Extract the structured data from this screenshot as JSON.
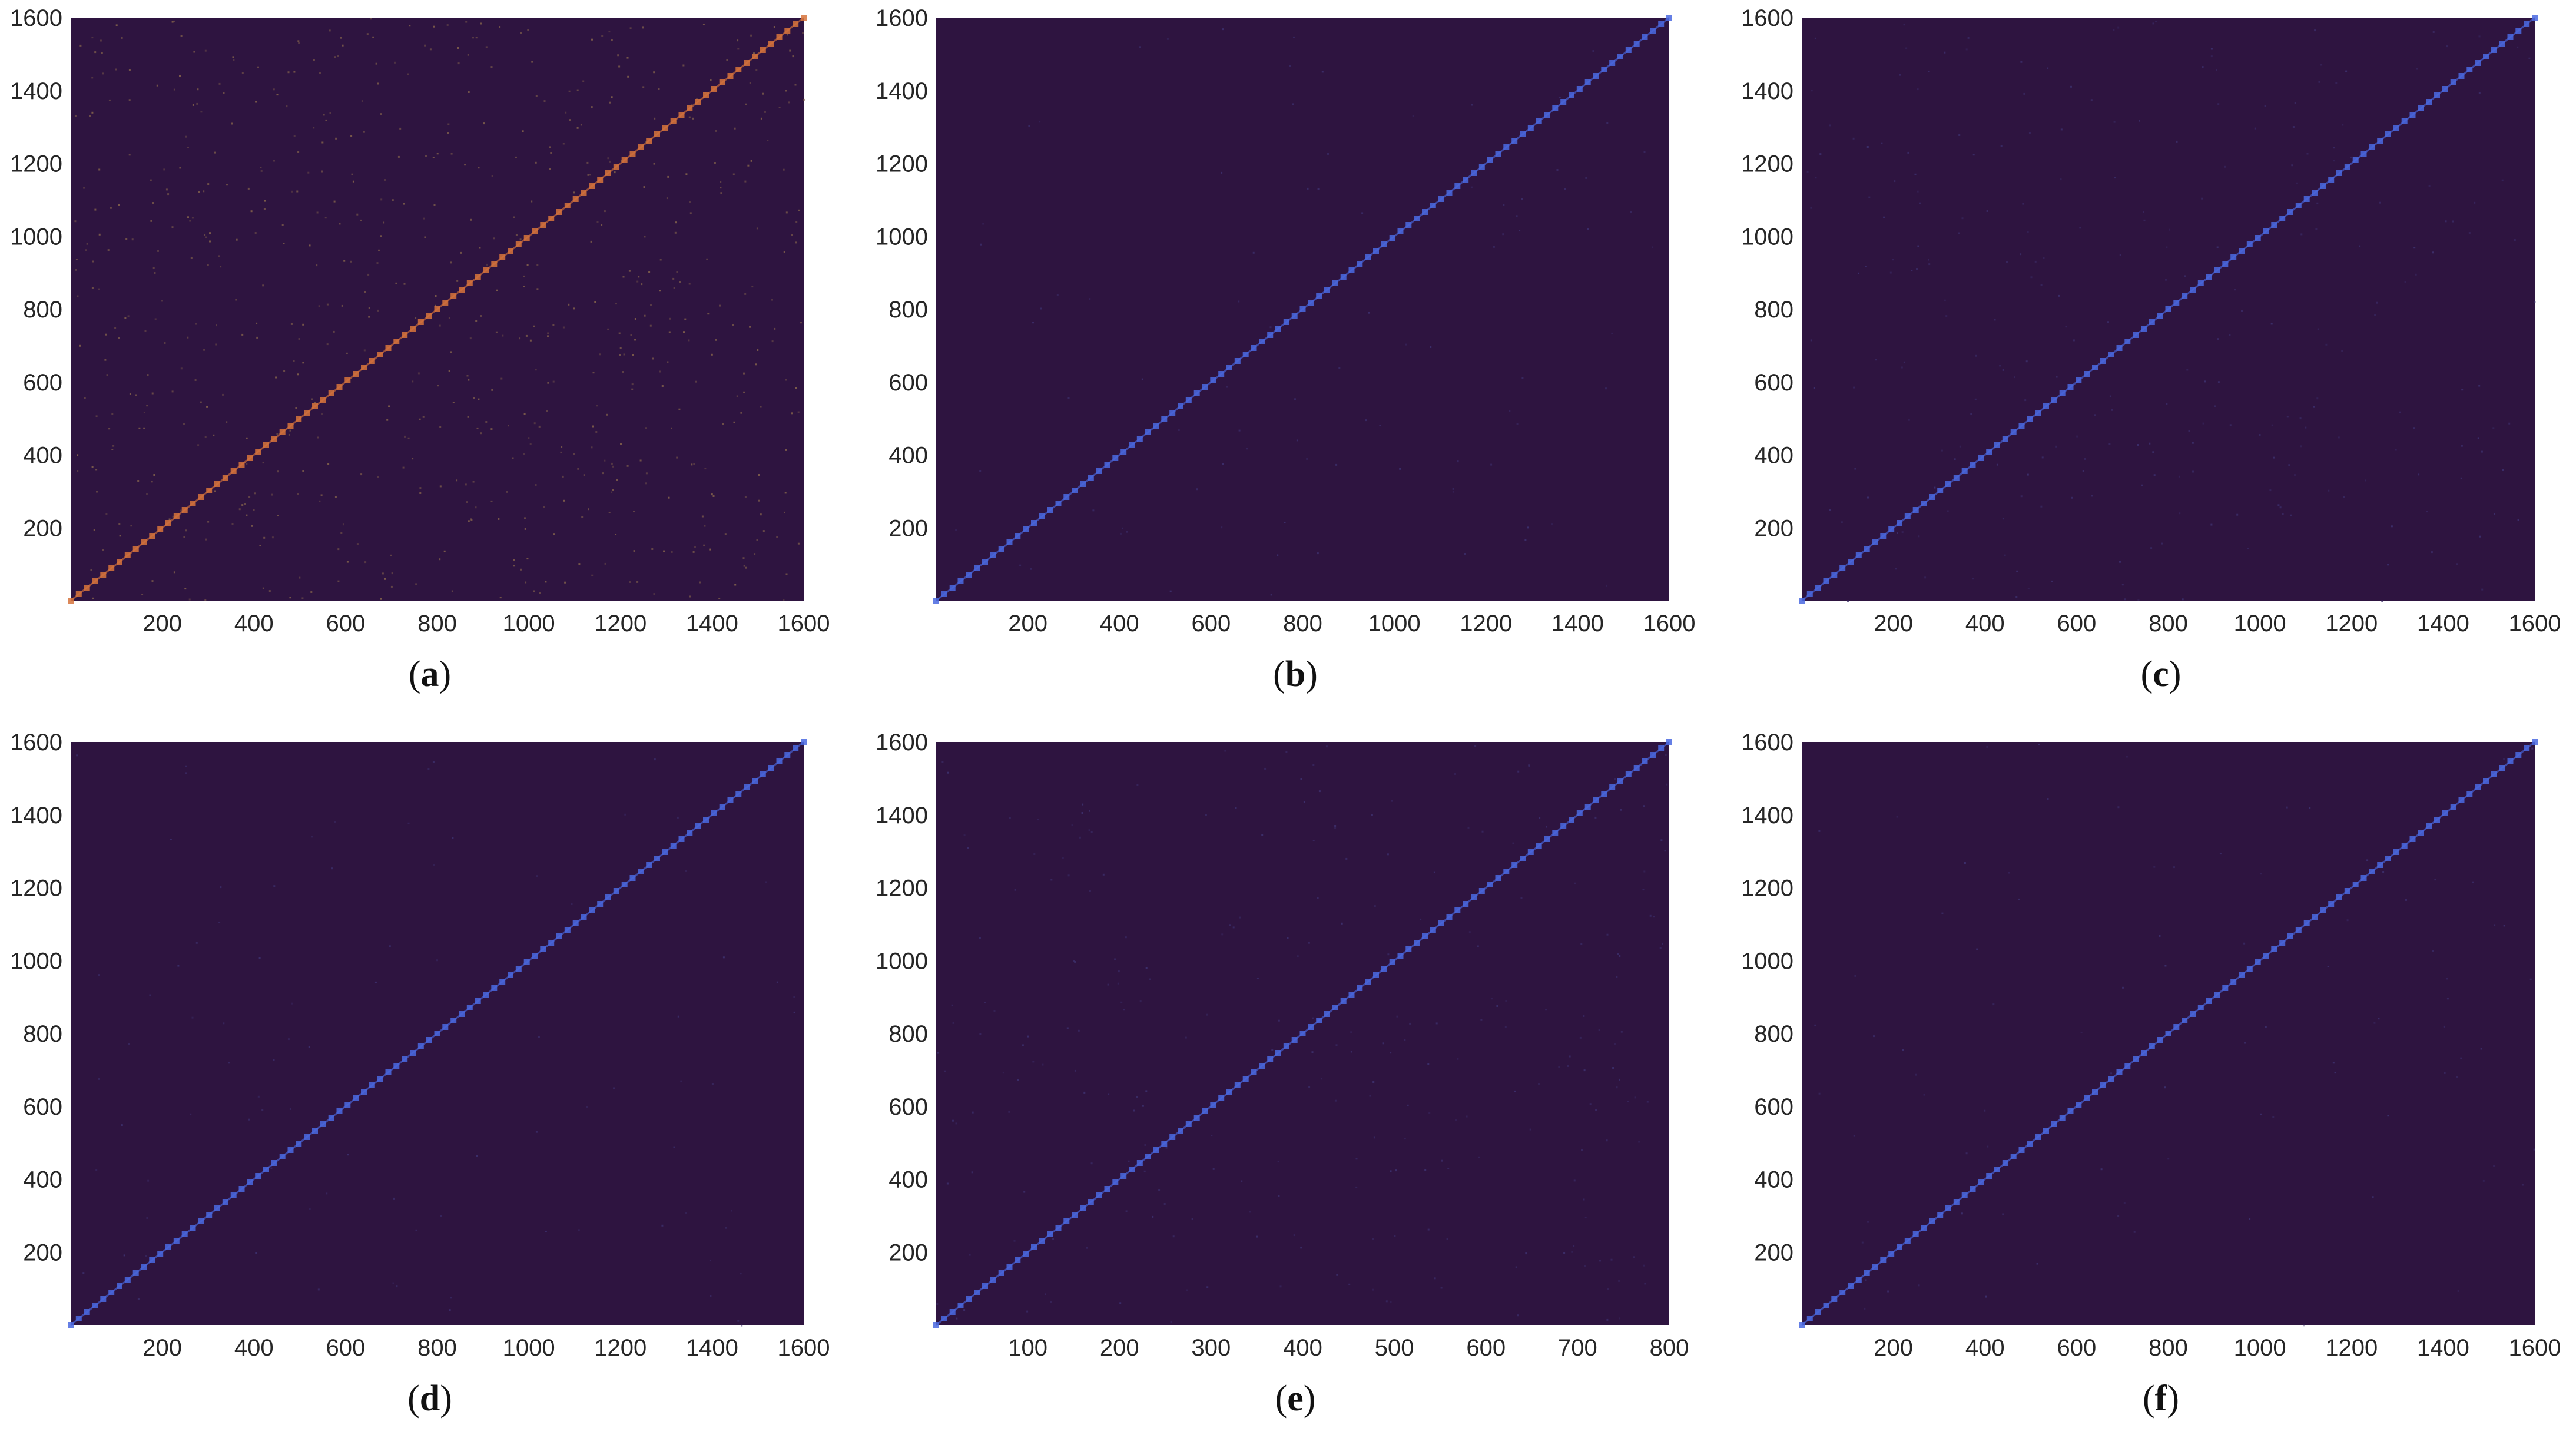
{
  "figure": {
    "panels": [
      {
        "id": "a",
        "caption_letter": "a"
      },
      {
        "id": "b",
        "caption_letter": "b"
      },
      {
        "id": "c",
        "caption_letter": "c"
      },
      {
        "id": "d",
        "caption_letter": "d"
      },
      {
        "id": "e",
        "caption_letter": "e"
      },
      {
        "id": "f",
        "caption_letter": "f"
      }
    ]
  },
  "chart_data": [
    {
      "panel": "a",
      "type": "heatmap",
      "title": "",
      "xlabel": "",
      "ylabel": "",
      "xlim": [
        0,
        1600
      ],
      "ylim": [
        0,
        1600
      ],
      "xticks": [
        200,
        400,
        600,
        800,
        1000,
        1200,
        1400,
        1600
      ],
      "yticks": [
        200,
        400,
        600,
        800,
        1000,
        1200,
        1400,
        1600
      ],
      "grid": false,
      "colors": {
        "background": "#2e1440",
        "diagonal": "#d6733c",
        "noise": "#7a5a4a"
      },
      "diagonal": {
        "from": [
          0,
          0
        ],
        "to": [
          1600,
          1600
        ]
      },
      "noise_level": "high"
    },
    {
      "panel": "b",
      "type": "heatmap",
      "title": "",
      "xlabel": "",
      "ylabel": "",
      "xlim": [
        0,
        1600
      ],
      "ylim": [
        0,
        1600
      ],
      "xticks": [
        200,
        400,
        600,
        800,
        1000,
        1200,
        1400,
        1600
      ],
      "yticks": [
        200,
        400,
        600,
        800,
        1000,
        1200,
        1400,
        1600
      ],
      "grid": false,
      "colors": {
        "background": "#2e1440",
        "diagonal": "#4a68e0",
        "noise": "#3c2e6a"
      },
      "diagonal": {
        "from": [
          0,
          0
        ],
        "to": [
          1600,
          1600
        ]
      },
      "noise_level": "low"
    },
    {
      "panel": "c",
      "type": "heatmap",
      "title": "",
      "xlabel": "",
      "ylabel": "",
      "xlim": [
        0,
        1600
      ],
      "ylim": [
        0,
        1600
      ],
      "xticks": [
        200,
        400,
        600,
        800,
        1000,
        1200,
        1400,
        1600
      ],
      "yticks": [
        200,
        400,
        600,
        800,
        1000,
        1200,
        1400,
        1600
      ],
      "grid": false,
      "colors": {
        "background": "#2e1440",
        "diagonal": "#4a68e0",
        "noise": "#3c2e6a"
      },
      "diagonal": {
        "from": [
          0,
          0
        ],
        "to": [
          1600,
          1600
        ]
      },
      "noise_level": "medium"
    },
    {
      "panel": "d",
      "type": "heatmap",
      "title": "",
      "xlabel": "",
      "ylabel": "",
      "xlim": [
        0,
        1600
      ],
      "ylim": [
        0,
        1600
      ],
      "xticks": [
        200,
        400,
        600,
        800,
        1000,
        1200,
        1400,
        1600
      ],
      "yticks": [
        200,
        400,
        600,
        800,
        1000,
        1200,
        1400,
        1600
      ],
      "grid": false,
      "colors": {
        "background": "#2e1440",
        "diagonal": "#4a68e0",
        "noise": "#3c2e6a"
      },
      "diagonal": {
        "from": [
          0,
          0
        ],
        "to": [
          1600,
          1600
        ]
      },
      "noise_level": "low"
    },
    {
      "panel": "e",
      "type": "heatmap",
      "title": "",
      "xlabel": "",
      "ylabel": "",
      "xlim": [
        0,
        800
      ],
      "ylim": [
        0,
        1600
      ],
      "xticks": [
        100,
        200,
        300,
        400,
        500,
        600,
        700,
        800
      ],
      "yticks": [
        200,
        400,
        600,
        800,
        1000,
        1200,
        1400,
        1600
      ],
      "grid": false,
      "colors": {
        "background": "#2e1440",
        "diagonal": "#4a68e0",
        "noise": "#3c2e6a"
      },
      "diagonal": {
        "from": [
          0,
          0
        ],
        "to": [
          800,
          1600
        ]
      },
      "noise_level": "medium"
    },
    {
      "panel": "f",
      "type": "heatmap",
      "title": "",
      "xlabel": "",
      "ylabel": "",
      "xlim": [
        0,
        1600
      ],
      "ylim": [
        0,
        1600
      ],
      "xticks": [
        200,
        400,
        600,
        800,
        1000,
        1200,
        1400,
        1600
      ],
      "yticks": [
        200,
        400,
        600,
        800,
        1000,
        1200,
        1400,
        1600
      ],
      "grid": false,
      "colors": {
        "background": "#2e1440",
        "diagonal": "#4a68e0",
        "noise": "#3c2e6a"
      },
      "diagonal": {
        "from": [
          0,
          0
        ],
        "to": [
          1600,
          1600
        ]
      },
      "noise_level": "low"
    }
  ]
}
